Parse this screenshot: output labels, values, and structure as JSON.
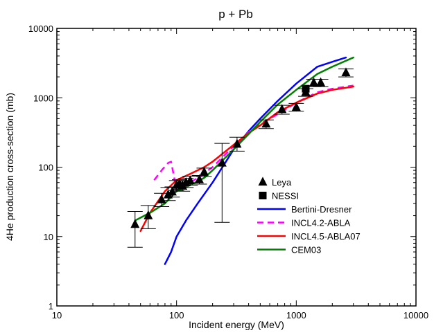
{
  "chart_data": {
    "type": "line",
    "title": "p + Pb",
    "xlabel": "Incident energy (MeV)",
    "ylabel": "4He production cross-section (mb)",
    "xscale": "log",
    "yscale": "log",
    "xlim": [
      10,
      10000
    ],
    "ylim": [
      1,
      10000
    ],
    "x_ticks": [
      "10",
      "100",
      "1000",
      "10000"
    ],
    "y_ticks": [
      "1",
      "10",
      "100",
      "1000",
      "10000"
    ],
    "grid": false,
    "legend_position": "center-right",
    "markers": [
      {
        "name": "Leya",
        "marker": "triangle",
        "color": "#000000",
        "points": [
          {
            "x": 45,
            "y": 15,
            "ylo": 7,
            "yhi": 23
          },
          {
            "x": 58,
            "y": 20,
            "ylo": 13,
            "yhi": 28
          },
          {
            "x": 75,
            "y": 34,
            "ylo": 27,
            "yhi": 42
          },
          {
            "x": 85,
            "y": 40,
            "ylo": 33,
            "yhi": 51
          },
          {
            "x": 92,
            "y": 44,
            "ylo": 37,
            "yhi": 52
          },
          {
            "x": 100,
            "y": 55,
            "ylo": 46,
            "yhi": 64
          },
          {
            "x": 106,
            "y": 57,
            "ylo": 48,
            "yhi": 66
          },
          {
            "x": 112,
            "y": 54,
            "ylo": 45,
            "yhi": 63
          },
          {
            "x": 120,
            "y": 60,
            "ylo": 51,
            "yhi": 69
          },
          {
            "x": 130,
            "y": 64,
            "ylo": 55,
            "yhi": 74
          },
          {
            "x": 155,
            "y": 66,
            "ylo": 57,
            "yhi": 76
          },
          {
            "x": 170,
            "y": 85,
            "ylo": 73,
            "yhi": 97
          },
          {
            "x": 240,
            "y": 115,
            "ylo": 16,
            "yhi": 220
          },
          {
            "x": 320,
            "y": 215,
            "ylo": 170,
            "yhi": 270
          },
          {
            "x": 560,
            "y": 420,
            "ylo": 360,
            "yhi": 480
          },
          {
            "x": 760,
            "y": 680,
            "ylo": 580,
            "yhi": 780
          },
          {
            "x": 1000,
            "y": 730,
            "ylo": 640,
            "yhi": 830
          },
          {
            "x": 1200,
            "y": 1200,
            "ylo": 1050,
            "yhi": 1350
          },
          {
            "x": 1400,
            "y": 1650,
            "ylo": 1450,
            "yhi": 1850
          },
          {
            "x": 1600,
            "y": 1650,
            "ylo": 1450,
            "yhi": 1850
          },
          {
            "x": 2600,
            "y": 2300,
            "ylo": 2000,
            "yhi": 2600
          }
        ]
      },
      {
        "name": "NESSI",
        "marker": "square",
        "color": "#000000",
        "points": [
          {
            "x": 1200,
            "y": 1350
          }
        ]
      }
    ],
    "series": [
      {
        "name": "Bertini-Dresner",
        "color": "#0000ff",
        "dashed": false,
        "x": [
          80,
          90,
          100,
          120,
          150,
          200,
          250,
          300,
          400,
          500,
          700,
          1000,
          1500,
          2000,
          2600
        ],
        "y": [
          4,
          6,
          10,
          17,
          30,
          60,
          110,
          180,
          330,
          500,
          900,
          1600,
          2800,
          3300,
          3800
        ]
      },
      {
        "name": "INCL4.2-ABLA",
        "color": "#ff00ff",
        "dashed": true,
        "x": [
          65,
          75,
          85,
          90,
          95,
          100,
          120,
          150,
          200,
          300,
          400,
          500,
          700,
          1000,
          1500,
          2000,
          3000
        ],
        "y": [
          65,
          90,
          115,
          120,
          75,
          45,
          55,
          70,
          100,
          200,
          320,
          420,
          580,
          850,
          1200,
          1350,
          1500
        ]
      },
      {
        "name": "INCL4.5-ABLA07",
        "color": "#ff0000",
        "dashed": false,
        "x": [
          50,
          60,
          80,
          100,
          130,
          170,
          200,
          300,
          400,
          500,
          700,
          1000,
          1500,
          2000,
          3000
        ],
        "y": [
          12,
          22,
          45,
          65,
          80,
          100,
          120,
          210,
          310,
          400,
          620,
          850,
          1150,
          1300,
          1450
        ]
      },
      {
        "name": "CEM03",
        "color": "#008000",
        "dashed": false,
        "x": [
          45,
          60,
          80,
          100,
          130,
          170,
          200,
          300,
          400,
          500,
          700,
          1000,
          1500,
          2000,
          3000
        ],
        "y": [
          17,
          22,
          30,
          45,
          55,
          70,
          90,
          180,
          300,
          450,
          800,
          1300,
          2200,
          2800,
          3800
        ]
      }
    ]
  }
}
